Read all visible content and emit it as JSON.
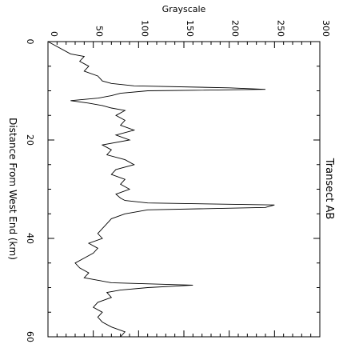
{
  "chart_data": {
    "type": "line",
    "orientation": "rotated-90",
    "title": "Transect AB",
    "xlabel": "Distance From West End (km)",
    "ylabel": "Grayscale",
    "xlim": [
      0,
      60
    ],
    "ylim": [
      0,
      300
    ],
    "x_ticks": [
      "0",
      "20",
      "40",
      "60"
    ],
    "y_ticks": [
      "0",
      "50",
      "100",
      "150",
      "200",
      "250",
      "300"
    ],
    "grid": false,
    "series": [
      {
        "x": [
          0.0,
          2.5,
          3.0,
          4.0,
          5.0,
          6.0,
          7.0,
          8.0,
          8.5,
          9.0,
          9.4,
          9.7,
          10.0,
          10.5,
          11.0,
          11.5,
          12.0,
          12.5,
          13.0,
          13.5,
          14.0,
          15.0,
          16.0,
          17.0,
          18.0,
          19.0,
          20.0,
          21.0,
          22.0,
          23.0,
          24.0,
          25.0,
          26.0,
          27.0,
          28.0,
          29.0,
          30.0,
          31.0,
          31.8,
          32.3,
          32.8,
          33.2,
          33.7,
          34.2,
          35.0,
          36.0,
          37.0,
          38.0,
          39.0,
          40.0,
          41.0,
          42.0,
          43.0,
          44.0,
          45.0,
          46.0,
          47.0,
          48.0,
          48.5,
          49.0,
          49.5,
          50.0,
          50.5,
          51.0,
          52.0,
          53.0,
          54.0,
          55.0,
          56.0,
          57.0,
          58.0,
          59.0,
          60.0
        ],
        "y": [
          0,
          25,
          40,
          35,
          45,
          40,
          55,
          60,
          70,
          95,
          200,
          240,
          110,
          80,
          70,
          55,
          25,
          45,
          60,
          70,
          85,
          75,
          85,
          80,
          95,
          75,
          90,
          60,
          70,
          65,
          85,
          95,
          75,
          70,
          85,
          80,
          90,
          75,
          80,
          85,
          110,
          250,
          240,
          110,
          85,
          70,
          65,
          60,
          55,
          60,
          45,
          55,
          50,
          40,
          30,
          35,
          45,
          40,
          55,
          70,
          160,
          110,
          80,
          65,
          70,
          55,
          50,
          60,
          55,
          60,
          70,
          85,
          80
        ]
      }
    ]
  }
}
